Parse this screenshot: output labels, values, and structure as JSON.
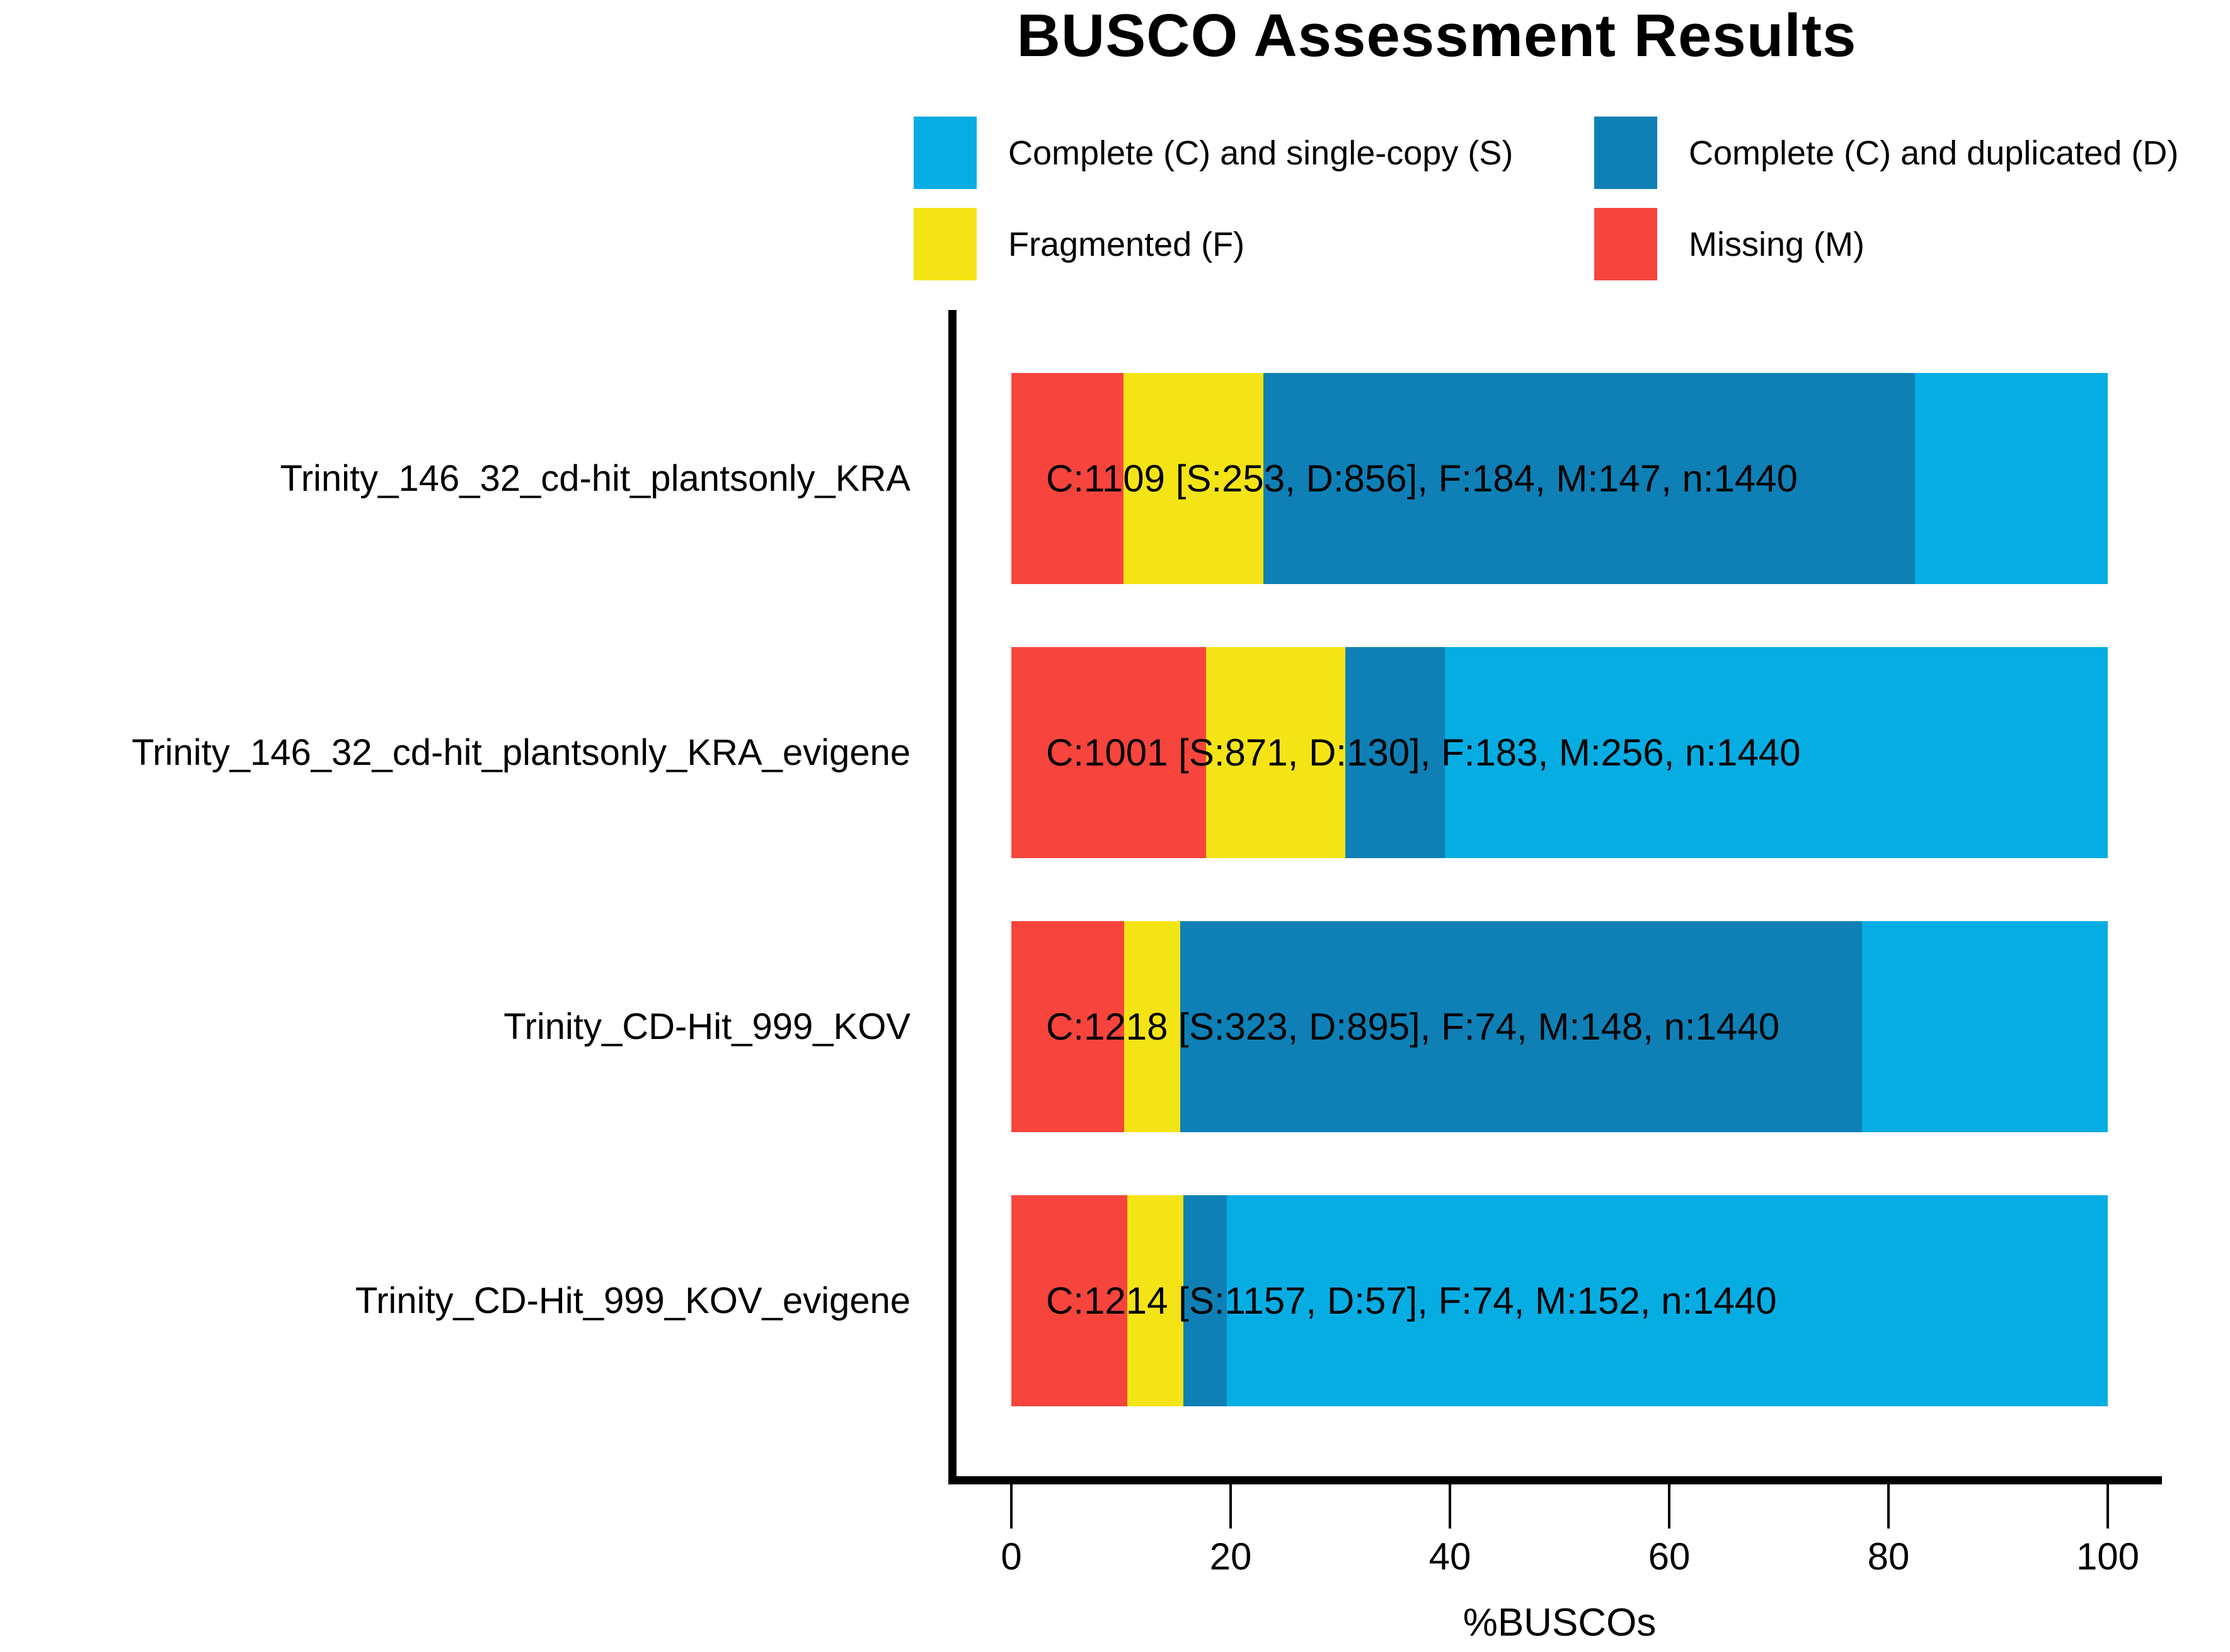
{
  "title": "BUSCO Assessment Results",
  "legend": [
    {
      "key": "single",
      "label": "Complete (C) and single-copy (S)",
      "color": "#06ADE3"
    },
    {
      "key": "duplicated",
      "label": "Complete (C) and duplicated (D)",
      "color": "#0E80B6"
    },
    {
      "key": "fragmented",
      "label": "Fragmented (F)",
      "color": "#F4E416"
    },
    {
      "key": "missing",
      "label": "Missing (M)",
      "color": "#F7453E"
    }
  ],
  "chart_data": {
    "type": "bar",
    "orientation": "horizontal",
    "stacked": true,
    "title": "BUSCO Assessment Results",
    "xlabel": "%BUSCOs",
    "xlim": [
      0,
      100
    ],
    "xticks": [
      0,
      20,
      40,
      60,
      80,
      100
    ],
    "grid": false,
    "legend_position": "top",
    "n_markers_per_assembly": 1440,
    "categories": [
      "Trinity_146_32_cd-hit_plantsonly_KRA",
      "Trinity_146_32_cd-hit_plantsonly_KRA_evigene",
      "Trinity_CD-Hit_999_KOV",
      "Trinity_CD-Hit_999_KOV_evigene"
    ],
    "stack_order_left_to_right": [
      "missing",
      "fragmented",
      "duplicated",
      "single"
    ],
    "series": [
      {
        "key": "missing",
        "name": "Missing (M)",
        "color": "#F7453E",
        "counts": [
          147,
          256,
          148,
          152
        ],
        "percents": [
          10.208,
          17.778,
          10.278,
          10.556
        ]
      },
      {
        "key": "fragmented",
        "name": "Fragmented (F)",
        "color": "#F4E416",
        "counts": [
          184,
          183,
          74,
          74
        ],
        "percents": [
          12.778,
          12.708,
          5.139,
          5.139
        ]
      },
      {
        "key": "duplicated",
        "name": "Complete (C) and duplicated (D)",
        "color": "#0E80B6",
        "counts": [
          856,
          130,
          895,
          57
        ],
        "percents": [
          59.444,
          9.028,
          62.153,
          3.958
        ]
      },
      {
        "key": "single",
        "name": "Complete (C) and single-copy (S)",
        "color": "#06ADE3",
        "counts": [
          253,
          871,
          323,
          1157
        ],
        "percents": [
          17.569,
          60.486,
          22.431,
          80.347
        ]
      }
    ],
    "bar_annotations": [
      "C:1109 [S:253, D:856], F:184, M:147, n:1440",
      "C:1001 [S:871, D:130], F:183, M:256, n:1440",
      "C:1218 [S:323, D:895], F:74, M:148, n:1440",
      "C:1214 [S:1157, D:57], F:74, M:152, n:1440"
    ]
  }
}
